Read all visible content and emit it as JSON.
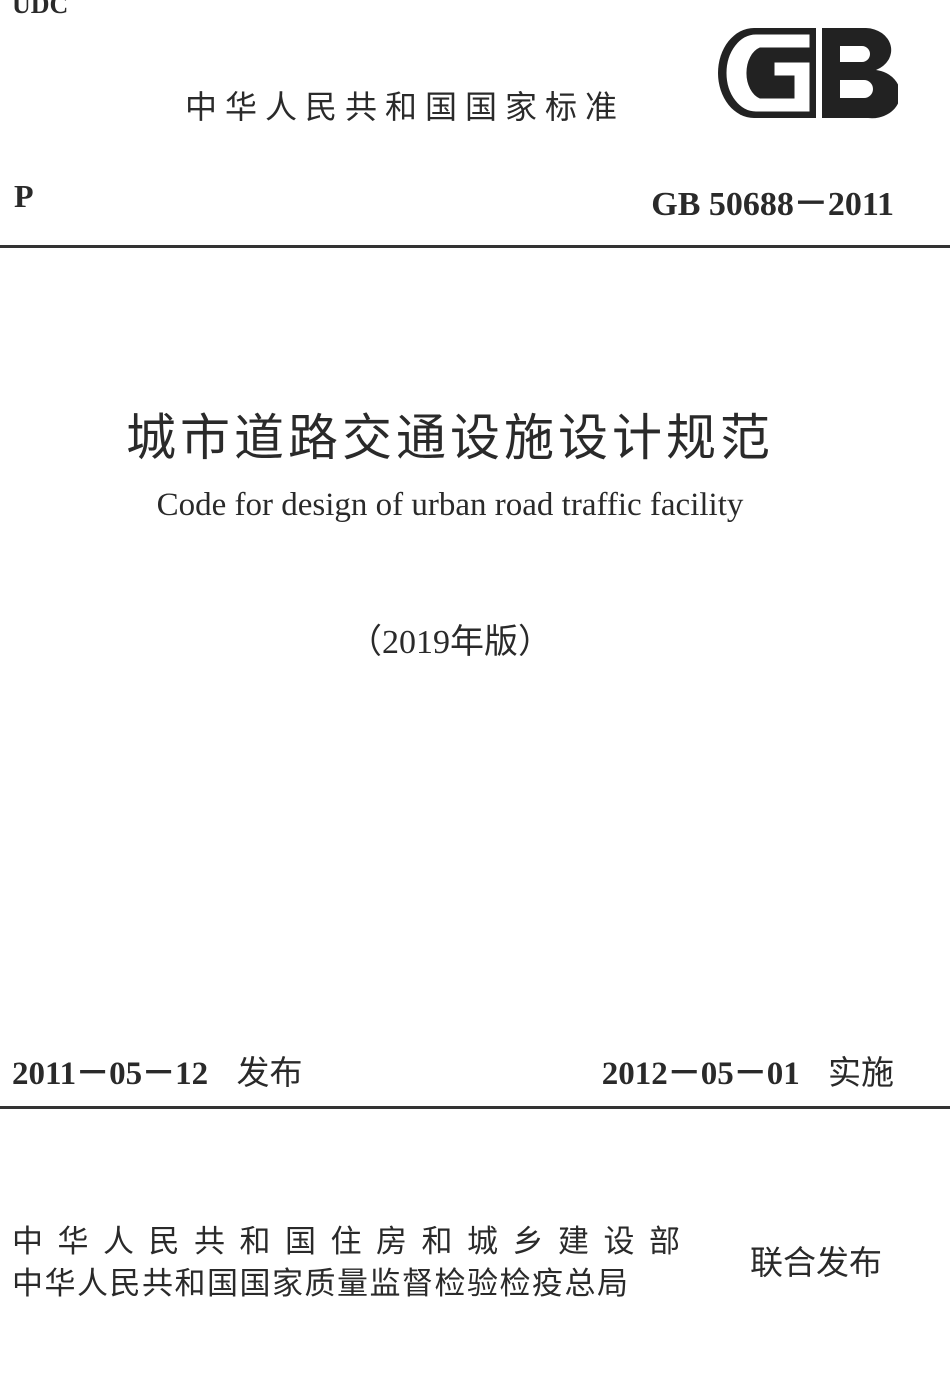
{
  "header": {
    "udc": "UDC",
    "standard_type": "中华人民共和国国家标准",
    "logo_text": "GB",
    "classification": "P",
    "standard_number": "GB 50688－2011"
  },
  "title": {
    "chinese": "城市道路交通设施设计规范",
    "english": "Code for design of urban road traffic facility",
    "edition": "（2019年版）"
  },
  "dates": {
    "issue_date": "2011－05－12",
    "issue_label": "发布",
    "implement_date": "2012－05－01",
    "implement_label": "实施"
  },
  "publishers": {
    "line1": "中华人民共和国住房和城乡建设部",
    "line2": "中华人民共和国国家质量监督检验检疫总局",
    "joint_label": "联合发布"
  }
}
